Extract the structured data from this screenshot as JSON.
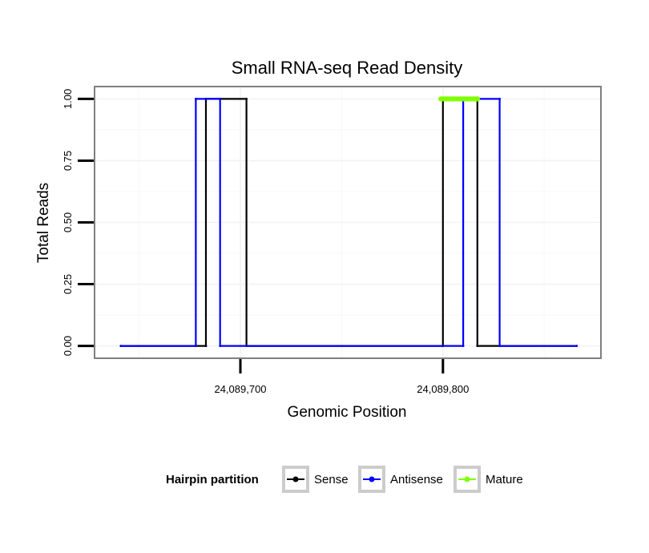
{
  "chart_data": {
    "type": "line",
    "title": "Small RNA-seq Read Density",
    "xlabel": "Genomic Position",
    "ylabel": "Total Reads",
    "xlim": [
      24089628,
      24089878
    ],
    "ylim": [
      -0.05,
      1.05
    ],
    "x_ticks": [
      24089700,
      24089800
    ],
    "x_tick_labels": [
      "24,089,700",
      "24,089,800"
    ],
    "y_ticks": [
      0,
      0.25,
      0.5,
      0.75,
      1
    ],
    "y_tick_labels": [
      "0.00",
      "0.25",
      "0.50",
      "0.75",
      "1.00"
    ],
    "grid": true,
    "legend_title": "Hairpin partition",
    "legend_position": "bottom",
    "series": [
      {
        "name": "Sense",
        "color": "#000000",
        "x": [
          24089641,
          24089683,
          24089683,
          24089703,
          24089703,
          24089800,
          24089800,
          24089817,
          24089817,
          24089866
        ],
        "y": [
          0,
          0,
          1,
          1,
          0,
          0,
          1,
          1,
          0,
          0
        ]
      },
      {
        "name": "Antisense",
        "color": "#0000ff",
        "x": [
          24089641,
          24089678,
          24089678,
          24089690,
          24089690,
          24089810,
          24089810,
          24089828,
          24089828,
          24089866
        ],
        "y": [
          0,
          0,
          1,
          1,
          0,
          0,
          1,
          1,
          0,
          0
        ]
      },
      {
        "name": "Mature",
        "color": "#7fff00",
        "x": [
          24089799,
          24089817
        ],
        "y": [
          1,
          1
        ]
      }
    ]
  }
}
